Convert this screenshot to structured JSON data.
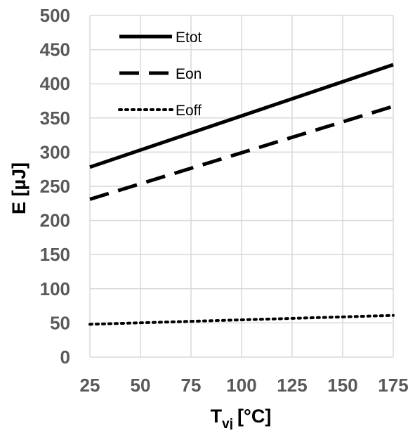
{
  "chart_data": {
    "type": "line",
    "xlabel": "T",
    "xlabel_sub": "vj",
    "xlabel_unit": "[°C]",
    "ylabel": "E  [µJ]",
    "xlim": [
      25,
      175
    ],
    "ylim": [
      0,
      500
    ],
    "xticks": [
      25,
      50,
      75,
      100,
      125,
      150,
      175
    ],
    "yticks": [
      0,
      50,
      100,
      150,
      200,
      250,
      300,
      350,
      400,
      450,
      500
    ],
    "grid": true,
    "legend_position": "top-left",
    "series": [
      {
        "name": "Etot",
        "style": "solid",
        "x": [
          25,
          175
        ],
        "y": [
          278,
          428
        ]
      },
      {
        "name": "Eon",
        "style": "dashed",
        "x": [
          25,
          175
        ],
        "y": [
          231,
          367
        ]
      },
      {
        "name": "Eoff",
        "style": "dotted",
        "x": [
          25,
          175
        ],
        "y": [
          48,
          61
        ]
      }
    ]
  },
  "colors": {
    "grid": "#d9d9d9",
    "tick_text": "#595959",
    "series": "#000000"
  }
}
